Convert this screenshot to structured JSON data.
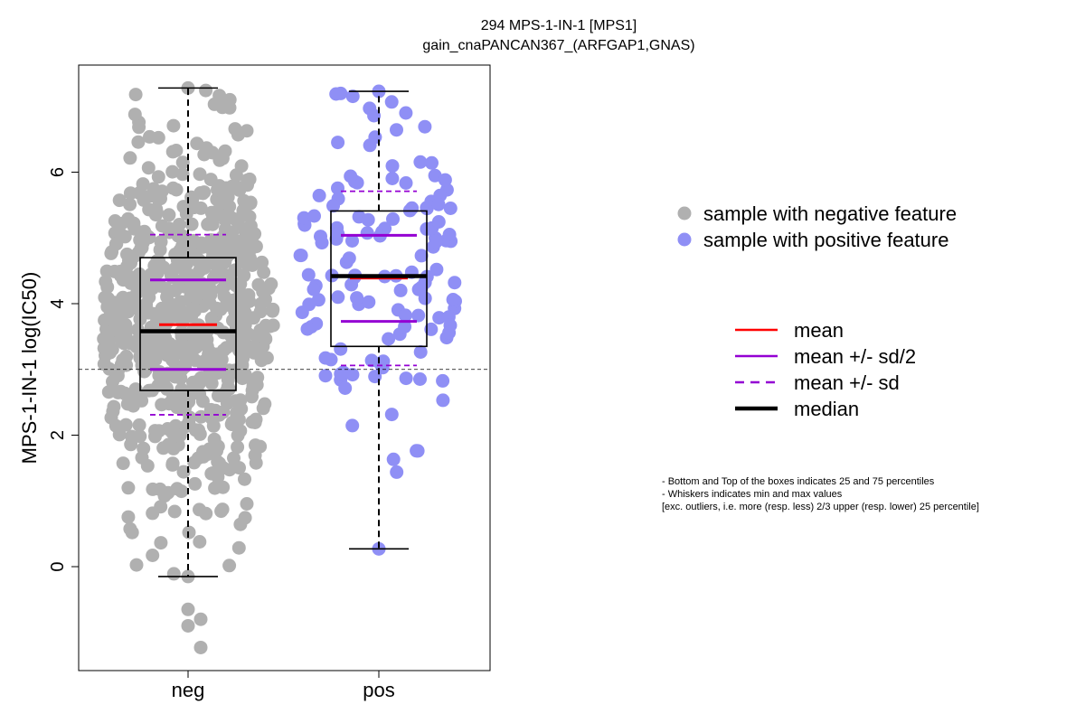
{
  "chart_data": {
    "type": "box",
    "title": "294 MPS-1-IN-1 [MPS1]",
    "subtitle": "gain_cnaPANCAN367_(ARFGAP1,GNAS)",
    "ylabel": "MPS-1-IN-1 log(IC50)",
    "xlabel": "",
    "ylim": [
      -1.5,
      7.6
    ],
    "yticks": [
      0,
      2,
      4,
      6
    ],
    "reference_line": 3.0,
    "categories": [
      "neg",
      "pos"
    ],
    "groups": [
      {
        "category": "neg",
        "color": "#b0b0b0",
        "n_points": 700,
        "min": -0.15,
        "q1": 2.68,
        "median": 3.58,
        "q3": 4.7,
        "max": 7.28,
        "mean": 3.68,
        "mean_minus_half_sd": 3.0,
        "mean_plus_half_sd": 4.36,
        "mean_minus_sd": 2.31,
        "mean_plus_sd": 5.05,
        "outliers": [
          -0.65,
          -0.8,
          -0.9,
          -1.23
        ]
      },
      {
        "category": "pos",
        "color": "#8f8ff5",
        "n_points": 135,
        "min": 0.27,
        "q1": 3.35,
        "median": 4.42,
        "q3": 5.41,
        "max": 7.23,
        "mean": 4.39,
        "mean_minus_half_sd": 3.73,
        "mean_plus_half_sd": 5.04,
        "mean_minus_sd": 3.06,
        "mean_plus_sd": 5.71,
        "outliers": []
      }
    ],
    "legend_points": [
      {
        "label": "sample with negative feature",
        "color": "#b0b0b0"
      },
      {
        "label": "sample with positive feature",
        "color": "#8f8ff5"
      }
    ],
    "legend_lines": [
      {
        "label": "mean",
        "color": "#ff0000",
        "style": "solid"
      },
      {
        "label": "mean +/- sd/2",
        "color": "#9400d3",
        "style": "solid"
      },
      {
        "label": "mean +/- sd",
        "color": "#9400d3",
        "style": "dashed"
      },
      {
        "label": "median",
        "color": "#000000",
        "style": "solid"
      }
    ],
    "notes": [
      "- Bottom and Top of the boxes indicates 25 and 75 percentiles",
      "- Whiskers indicates min and max values",
      "[exc. outliers, i.e. more (resp. less) 2/3 upper (resp. lower) 25 percentile]"
    ]
  }
}
